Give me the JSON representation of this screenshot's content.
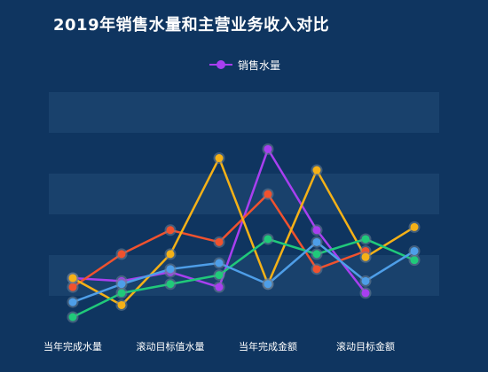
{
  "chart_data": {
    "type": "line",
    "title": "2019年销售水量和主营业务收入对比",
    "legend": {
      "placement": "top-center",
      "entries": [
        "销售水量"
      ]
    },
    "categories": [
      "当年完成水量",
      "",
      "滚动目标值水量",
      "",
      "当年完成金额",
      "",
      "滚动目标金额",
      ""
    ],
    "x_labels": [
      "当年完成水量",
      "滚动目标值水量",
      "当年完成金额",
      "滚动目标金额"
    ],
    "grid": "alternating-bands",
    "ylim": [
      0,
      7.5
    ],
    "series": [
      {
        "name": "销售水量",
        "color": "#a83ff0",
        "values": [
          1.3,
          1.2,
          1.5,
          1.0,
          5.6,
          2.9,
          0.8,
          null
        ]
      },
      {
        "color": "#f0522e",
        "values": [
          1.0,
          2.1,
          2.9,
          2.5,
          4.1,
          1.6,
          2.2,
          null
        ]
      },
      {
        "color": "#f5b117",
        "values": [
          1.3,
          0.4,
          2.1,
          5.3,
          1.1,
          4.9,
          2.0,
          3.0
        ]
      },
      {
        "color": "#20c97a",
        "values": [
          0.0,
          0.8,
          1.1,
          1.4,
          2.6,
          2.1,
          2.6,
          1.9
        ]
      },
      {
        "color": "#4e9ee8",
        "values": [
          0.5,
          1.1,
          1.6,
          1.8,
          1.1,
          2.5,
          1.2,
          2.2
        ]
      }
    ]
  }
}
